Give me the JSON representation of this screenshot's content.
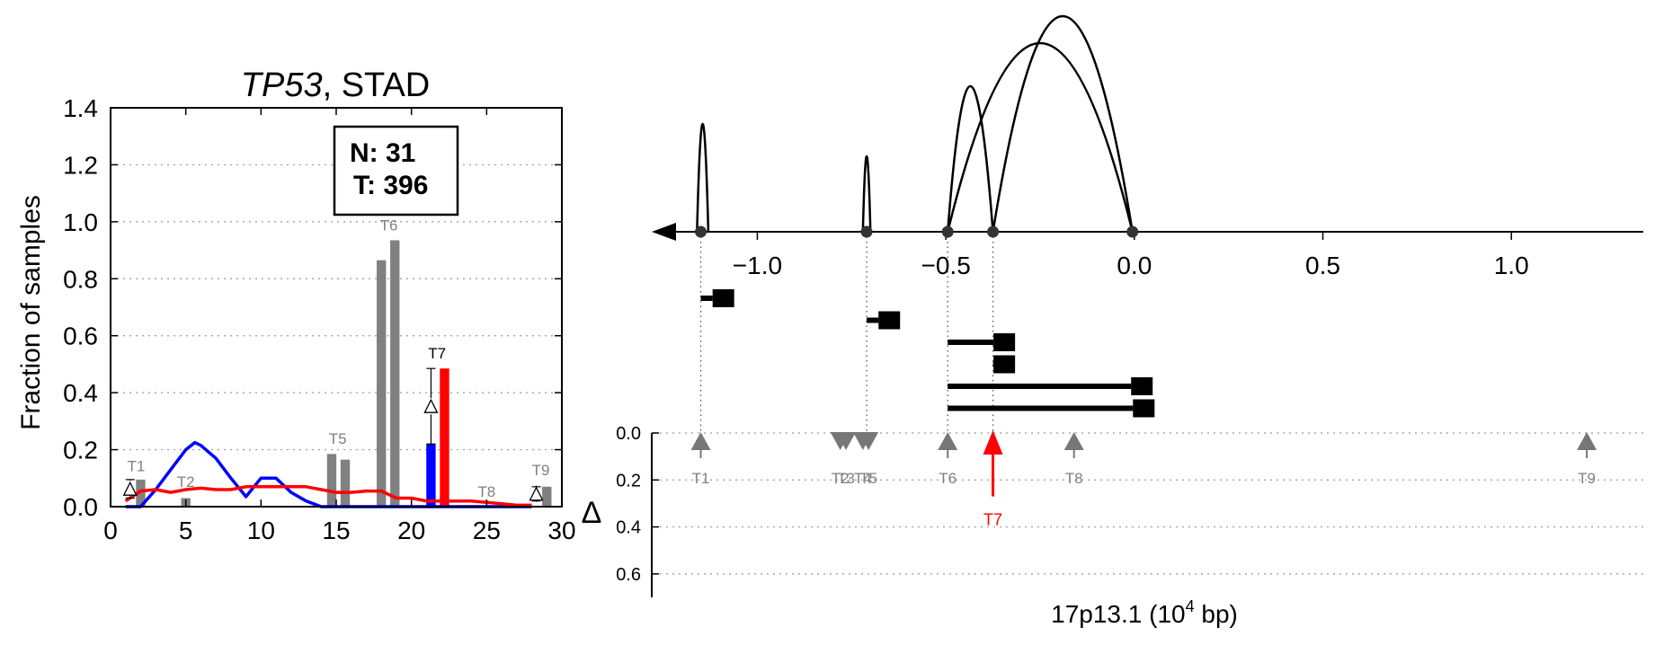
{
  "chart_data": [
    {
      "type": "bar",
      "title_gene": "TP53",
      "title_rest": ", STAD",
      "xlabel": "",
      "ylabel": "Fraction of samples",
      "xlim": [
        0,
        30
      ],
      "ylim": [
        0,
        1.4
      ],
      "xticks": [
        "0",
        "5",
        "10",
        "15",
        "20",
        "25",
        "30"
      ],
      "yticks": [
        "0.0",
        "0.2",
        "0.4",
        "0.6",
        "0.8",
        "1.0",
        "1.2",
        "1.4"
      ],
      "grid": "horizontal-dotted",
      "legend_box": {
        "line1": "N: 31",
        "line2": "T: 396"
      },
      "bars": [
        {
          "x": 2,
          "value": 0.095,
          "color": "#808080",
          "group": "T1"
        },
        {
          "x": 5,
          "value": 0.03,
          "color": "#808080",
          "group": "T2"
        },
        {
          "x": 14.7,
          "value": 0.185,
          "color": "#808080",
          "group": "T5"
        },
        {
          "x": 15.6,
          "value": 0.165,
          "color": "#808080",
          "group": "T5"
        },
        {
          "x": 18,
          "value": 0.865,
          "color": "#808080",
          "group": "T6"
        },
        {
          "x": 18.9,
          "value": 0.935,
          "color": "#808080",
          "group": "T6"
        },
        {
          "x": 21.3,
          "value": 0.22,
          "color": "#0000ff",
          "group": "T7"
        },
        {
          "x": 22.2,
          "value": 0.485,
          "color": "#ff0000",
          "group": "T7"
        },
        {
          "x": 29,
          "value": 0.07,
          "color": "#808080",
          "group": "T9"
        }
      ],
      "bar_labels": [
        {
          "text": "T1",
          "x": 1.7,
          "y": 0.125,
          "color": "#808080"
        },
        {
          "text": "T2",
          "x": 5,
          "y": 0.07,
          "color": "#808080"
        },
        {
          "text": "T5",
          "x": 15.1,
          "y": 0.22,
          "color": "#808080"
        },
        {
          "text": "T6",
          "x": 18.5,
          "y": 0.97,
          "color": "#808080"
        },
        {
          "text": "T7",
          "x": 21.7,
          "y": 0.52,
          "color": "#000000"
        },
        {
          "text": "T8",
          "x": 25,
          "y": 0.035,
          "color": "#808080"
        },
        {
          "text": "T9",
          "x": 28.6,
          "y": 0.11,
          "color": "#808080"
        }
      ],
      "deltas": [
        {
          "x": 1.3,
          "y_low": 0.03,
          "y_high": 0.095
        },
        {
          "x": 21.3,
          "y_low": 0.22,
          "y_high": 0.485
        },
        {
          "x": 28.3,
          "y_low": 0.02,
          "y_high": 0.07
        }
      ],
      "series": [
        {
          "color": "#0000ff",
          "x": [
            1,
            2,
            3,
            4,
            5,
            5.6,
            6,
            7,
            8,
            9,
            10,
            11,
            12,
            13,
            14,
            15,
            16,
            17,
            18,
            19,
            20,
            21,
            22,
            23,
            24,
            25,
            26,
            27,
            28
          ],
          "values": [
            0,
            0,
            0.06,
            0.13,
            0.2,
            0.225,
            0.215,
            0.17,
            0.1,
            0.035,
            0.1,
            0.1,
            0.05,
            0.02,
            0,
            0,
            0,
            0,
            0,
            0,
            0,
            0,
            0,
            0,
            0,
            0,
            0,
            0,
            0
          ]
        },
        {
          "color": "#ff0000",
          "x": [
            1,
            2,
            3,
            4,
            5,
            6,
            7,
            8,
            9,
            10,
            11,
            12,
            13,
            14,
            15,
            16,
            17,
            18,
            19,
            20,
            21,
            22,
            23,
            24,
            25,
            26,
            27,
            28
          ],
          "values": [
            0.02,
            0.055,
            0.06,
            0.05,
            0.06,
            0.065,
            0.06,
            0.06,
            0.07,
            0.07,
            0.07,
            0.07,
            0.07,
            0.06,
            0.05,
            0.05,
            0.055,
            0.055,
            0.03,
            0.03,
            0.02,
            0.02,
            0.02,
            0.02,
            0.015,
            0.01,
            0.005,
            0.005
          ]
        }
      ]
    },
    {
      "type": "scatter",
      "xlabel_pre": "17p13.1 (10",
      "xlabel_sup": "4",
      "xlabel_post": " bp)",
      "xlim": [
        -1.28,
        1.35
      ],
      "xticks": [
        {
          "v": -1.0,
          "label": "−1.0"
        },
        {
          "v": -0.5,
          "label": "−0.5"
        },
        {
          "v": 0.0,
          "label": "0.0"
        },
        {
          "v": 0.5,
          "label": "0.5"
        },
        {
          "v": 1.0,
          "label": "1.0"
        }
      ],
      "delta_axis_label": "Δ",
      "delta_ticks": [
        "0.0",
        "0.2",
        "0.4",
        "0.6"
      ],
      "delta_ylim": [
        0,
        0.7
      ],
      "exon_points": [
        -1.15,
        -0.71,
        -0.495,
        -0.375,
        -0.005
      ],
      "arcs": [
        {
          "start": -1.16,
          "end": -1.13,
          "height": 1.0
        },
        {
          "start": -0.72,
          "end": -0.7,
          "height": 0.7
        },
        {
          "start": -0.495,
          "end": -0.375,
          "height": 1.35
        },
        {
          "start": -0.495,
          "end": -0.005,
          "height": 1.75
        },
        {
          "start": -0.375,
          "end": -0.005,
          "height": 2.0
        }
      ],
      "transcripts": [
        {
          "start": -1.15,
          "end": -1.09
        },
        {
          "start": -0.71,
          "end": -0.65
        },
        {
          "start": -0.495,
          "end": -0.345
        },
        {
          "start": -0.375,
          "end": -0.345
        },
        {
          "start": -0.495,
          "end": 0.02
        },
        {
          "start": -0.495,
          "end": 0.025
        }
      ],
      "markers": [
        {
          "text": "T1",
          "x": -1.15,
          "delta": 0.02,
          "dir": "up",
          "color": "#808080"
        },
        {
          "text": "T2",
          "x": -0.78,
          "delta": 0.02,
          "dir": "down",
          "color": "#808080"
        },
        {
          "text": "T3",
          "x": -0.765,
          "delta": 0.02,
          "dir": "down",
          "color": "#808080"
        },
        {
          "text": "T4",
          "x": -0.72,
          "delta": 0.02,
          "dir": "down",
          "color": "#808080"
        },
        {
          "text": "T5",
          "x": -0.705,
          "delta": 0.02,
          "dir": "down",
          "color": "#808080"
        },
        {
          "text": "T6",
          "x": -0.495,
          "delta": 0.02,
          "dir": "up",
          "color": "#808080"
        },
        {
          "text": "T7",
          "x": -0.375,
          "delta": 0.27,
          "dir": "up",
          "color": "#ff0000"
        },
        {
          "text": "T8",
          "x": -0.16,
          "delta": 0.02,
          "dir": "up",
          "color": "#808080"
        },
        {
          "text": "T9",
          "x": 1.2,
          "delta": 0.02,
          "dir": "up",
          "color": "#808080"
        }
      ]
    }
  ]
}
